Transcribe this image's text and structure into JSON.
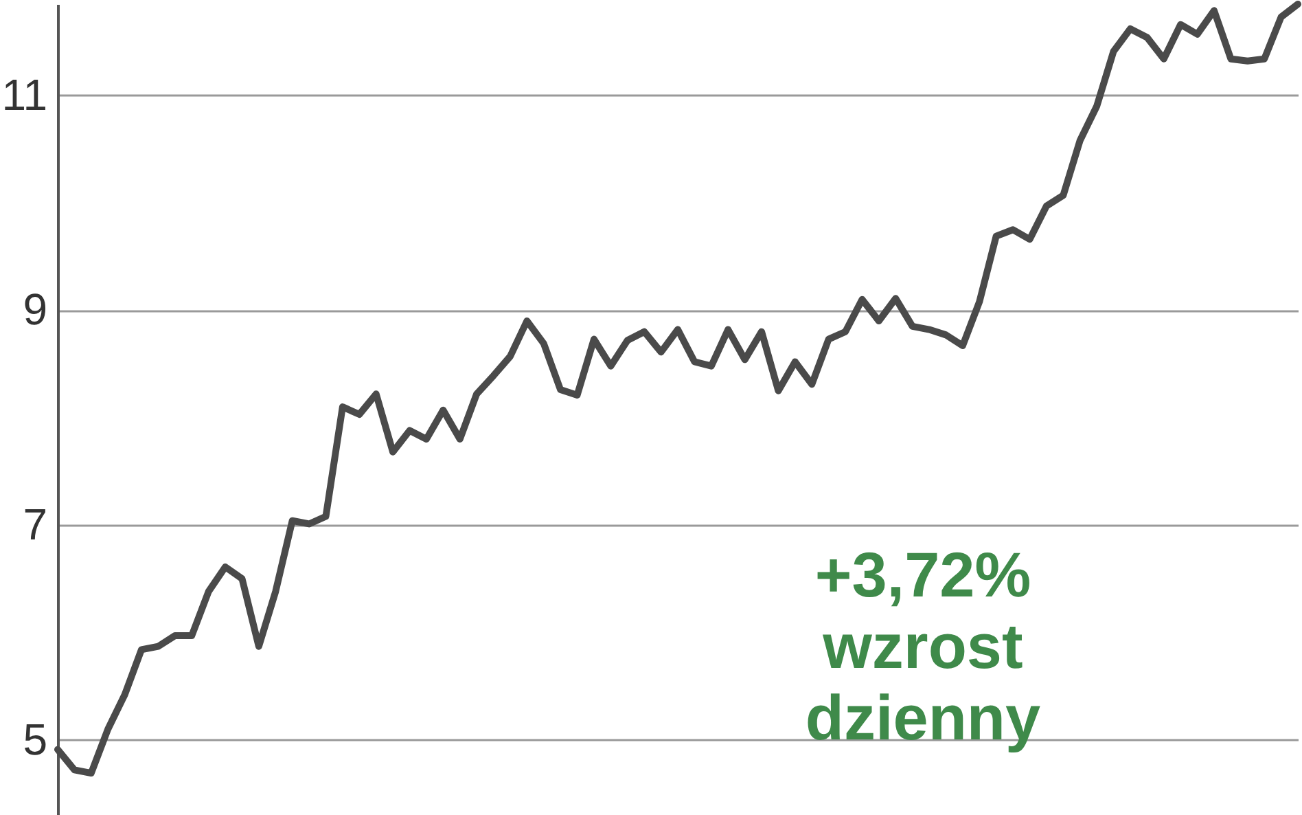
{
  "chart_data": {
    "type": "line",
    "categories": [
      null,
      null,
      null,
      null,
      null,
      null,
      null,
      null,
      null,
      null,
      null,
      null,
      null,
      null,
      null,
      null,
      null,
      null,
      null,
      null,
      null,
      null,
      null,
      null,
      null,
      null,
      null,
      null,
      null,
      null,
      null,
      null,
      null,
      null,
      null,
      null,
      null,
      null,
      null,
      null,
      null,
      null,
      null,
      null,
      null,
      null,
      null,
      null,
      null,
      null,
      null,
      null,
      null,
      null,
      null,
      null,
      null,
      null,
      null,
      null,
      null,
      null,
      null,
      null,
      null,
      null,
      null,
      null,
      null,
      null,
      null,
      null,
      null,
      null,
      null
    ],
    "series": [
      {
        "color": "#4a4a4a",
        "values": [
          4.91,
          4.72,
          4.69,
          5.1,
          5.42,
          5.84,
          5.87,
          5.97,
          5.97,
          6.38,
          6.61,
          6.5,
          5.87,
          6.38,
          7.04,
          7.01,
          7.08,
          8.1,
          8.03,
          8.22,
          7.68,
          7.88,
          7.8,
          8.07,
          7.8,
          8.22,
          8.39,
          8.57,
          8.9,
          8.69,
          8.26,
          8.21,
          8.73,
          8.48,
          8.72,
          8.8,
          8.61,
          8.82,
          8.52,
          8.48,
          8.82,
          8.54,
          8.8,
          8.25,
          8.52,
          8.31,
          8.73,
          8.8,
          9.1,
          8.9,
          9.11,
          8.85,
          8.82,
          8.77,
          8.67,
          9.08,
          9.69,
          9.75,
          9.66,
          9.97,
          10.07,
          10.58,
          10.9,
          11.41,
          11.62,
          11.54,
          11.34,
          11.66,
          11.57,
          11.79,
          11.34,
          11.32,
          11.34,
          11.73,
          11.85
        ]
      }
    ],
    "ylim": [
      4.3,
      11.85
    ],
    "yticks": [
      5,
      7,
      9,
      11
    ],
    "grid": "y",
    "tick_labels": "y",
    "marker": "none",
    "line_style": "solid",
    "annotations": [
      "+3,72% wzrost dzienny"
    ]
  }
}
